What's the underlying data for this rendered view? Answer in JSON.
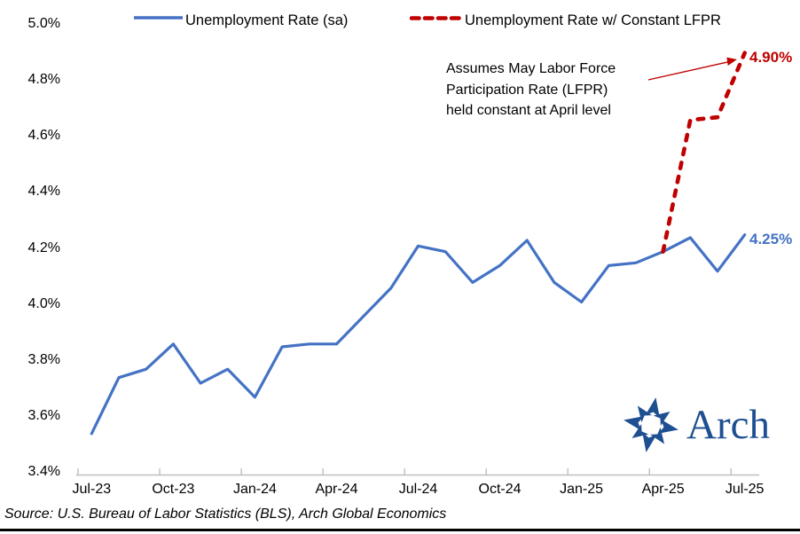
{
  "legend": {
    "series1_label": "Unemployment Rate (sa)",
    "series2_label": "Unemployment Rate w/ Constant LFPR"
  },
  "annotation": {
    "text": "Assumes May Labor Force\nParticipation Rate (LFPR)\nheld constant at April level"
  },
  "end_labels": {
    "red": "4.90%",
    "blue": "4.25%"
  },
  "logo": {
    "text": "Arch"
  },
  "source": {
    "text": "Source: U.S. Bureau of Labor Statistics (BLS), Arch Global Economics"
  },
  "colors": {
    "blue": "#4472C4",
    "red": "#C00000",
    "axis": "#BFBFBF",
    "logo_blue": "#1D4F91",
    "text": "#000000"
  },
  "chart_data": {
    "type": "line",
    "title": "",
    "xlabel": "",
    "ylabel": "",
    "ylim": [
      3.4,
      5.0
    ],
    "y_tick_step": 0.2,
    "grid": false,
    "legend_position": "top",
    "categories": [
      "Jul-23",
      "Aug-23",
      "Sep-23",
      "Oct-23",
      "Nov-23",
      "Dec-23",
      "Jan-24",
      "Feb-24",
      "Mar-24",
      "Apr-24",
      "May-24",
      "Jun-24",
      "Jul-24",
      "Aug-24",
      "Sep-24",
      "Oct-24",
      "Nov-24",
      "Dec-24",
      "Jan-25",
      "Feb-25",
      "Mar-25",
      "Apr-25",
      "May-25",
      "Jun-25",
      "Jul-25"
    ],
    "x_tick_labels": [
      "Jul-23",
      "Oct-23",
      "Jan-24",
      "Apr-24",
      "Jul-24",
      "Oct-24",
      "Jan-25",
      "Apr-25",
      "Jul-25"
    ],
    "x_tick_interval": 3,
    "y_tick_labels": [
      "5.0%",
      "4.8%",
      "4.6%",
      "4.4%",
      "4.2%",
      "4.0%",
      "3.8%",
      "3.6%",
      "3.4%"
    ],
    "series": [
      {
        "name": "Unemployment Rate (sa)",
        "color": "#4472C4",
        "style": "solid",
        "start_index": 0,
        "values": [
          3.54,
          3.74,
          3.77,
          3.86,
          3.72,
          3.77,
          3.67,
          3.85,
          3.86,
          3.86,
          3.96,
          4.06,
          4.21,
          4.19,
          4.08,
          4.14,
          4.23,
          4.08,
          4.01,
          4.14,
          4.15,
          4.19,
          4.24,
          4.12,
          4.25
        ],
        "end_label": "4.25%"
      },
      {
        "name": "Unemployment Rate w/ Constant LFPR",
        "color": "#C00000",
        "style": "dashed",
        "start_index": 21,
        "values": [
          4.19,
          4.66,
          4.67,
          4.9
        ],
        "end_label": "4.90%"
      }
    ],
    "annotations": [
      {
        "text": "Assumes May Labor Force Participation Rate (LFPR) held constant at April level",
        "arrow_points_to": "4.90% end of dashed line"
      }
    ]
  }
}
